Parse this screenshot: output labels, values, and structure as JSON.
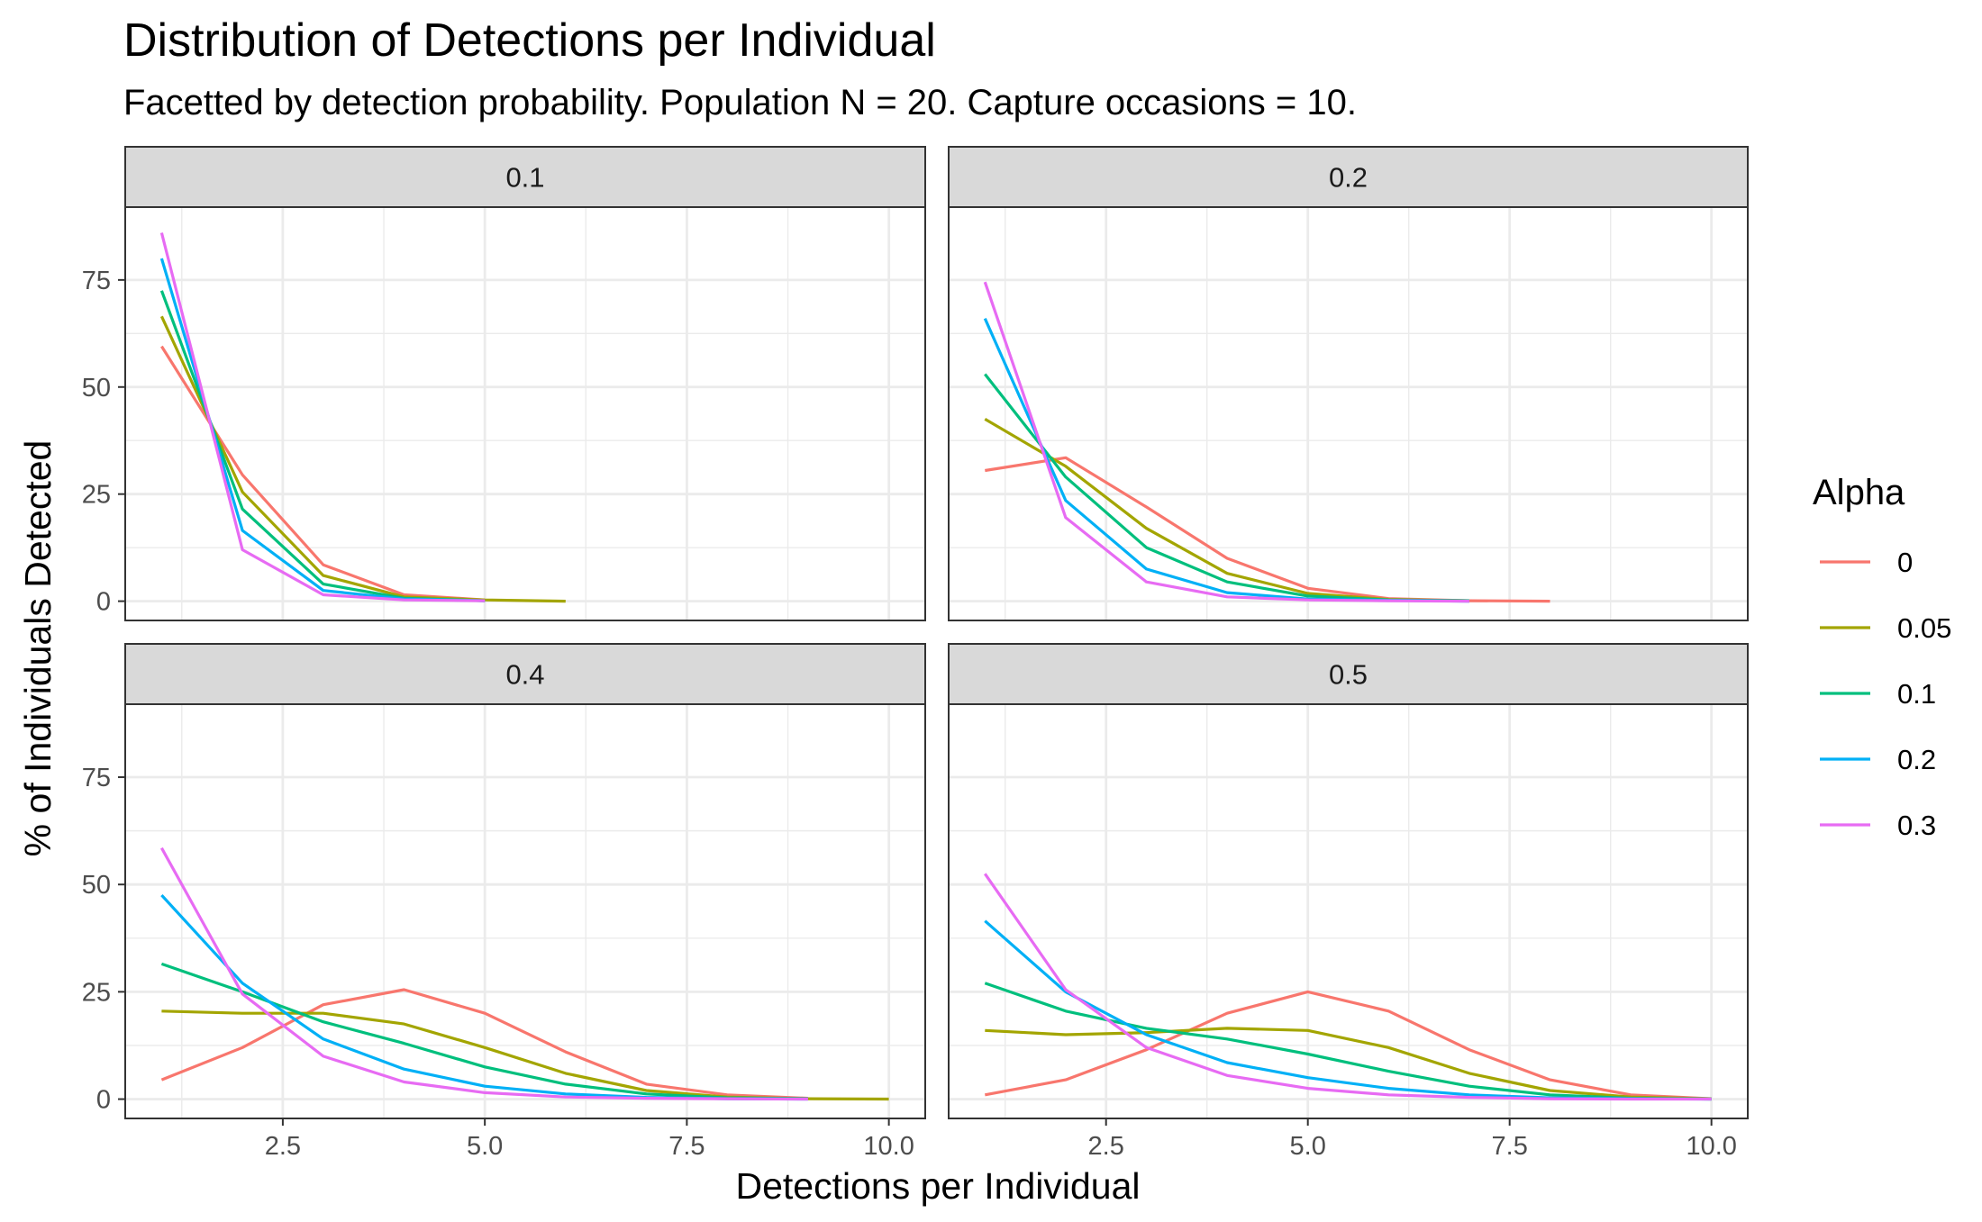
{
  "chart_data": {
    "type": "line",
    "title": "Distribution of Detections per Individual",
    "subtitle": "Facetted by detection probability. Population N = 20. Capture occasions = 10.",
    "xlabel": "Detections per Individual",
    "ylabel": "% of Individuals Detected",
    "xlim": [
      0.55,
      10.45
    ],
    "ylim": [
      -4.5,
      92
    ],
    "x_ticks": [
      2.5,
      5.0,
      7.5,
      10.0
    ],
    "x_tick_labels": [
      "2.5",
      "5.0",
      "7.5",
      "10.0"
    ],
    "y_ticks": [
      0,
      25,
      50,
      75
    ],
    "y_tick_labels": [
      "0",
      "25",
      "50",
      "75"
    ],
    "grid": true,
    "legend": {
      "title": "Alpha",
      "placement": "right",
      "entries": [
        {
          "label": "0",
          "color": "#F8766D"
        },
        {
          "label": "0.05",
          "color": "#A3A500"
        },
        {
          "label": "0.1",
          "color": "#00BF7D"
        },
        {
          "label": "0.2",
          "color": "#00B0F6"
        },
        {
          "label": "0.3",
          "color": "#E76BF3"
        }
      ]
    },
    "facets": [
      {
        "label": "0.1",
        "series": [
          {
            "name": "0",
            "x": [
              1,
              2,
              3,
              4,
              5
            ],
            "y": [
              59.5,
              29.5,
              8.5,
              1.5,
              0.3
            ]
          },
          {
            "name": "0.05",
            "x": [
              1,
              2,
              3,
              4,
              5,
              6
            ],
            "y": [
              66.5,
              25.5,
              6.0,
              1.0,
              0.3,
              0.0
            ]
          },
          {
            "name": "0.1",
            "x": [
              1,
              2,
              3,
              4,
              5
            ],
            "y": [
              72.5,
              21.5,
              4.0,
              0.7,
              0.1
            ]
          },
          {
            "name": "0.2",
            "x": [
              1,
              2,
              3,
              4,
              5
            ],
            "y": [
              80.0,
              16.5,
              2.5,
              0.5,
              0.1
            ]
          },
          {
            "name": "0.3",
            "x": [
              1,
              2,
              3,
              4,
              5
            ],
            "y": [
              86.0,
              12.0,
              1.5,
              0.3,
              0.1
            ]
          }
        ]
      },
      {
        "label": "0.2",
        "series": [
          {
            "name": "0",
            "x": [
              1,
              2,
              3,
              4,
              5,
              6,
              7,
              8
            ],
            "y": [
              30.5,
              33.5,
              22.0,
              10.0,
              3.0,
              0.6,
              0.1,
              0.0
            ]
          },
          {
            "name": "0.05",
            "x": [
              1,
              2,
              3,
              4,
              5,
              6,
              7
            ],
            "y": [
              42.5,
              31.5,
              17.0,
              6.5,
              1.8,
              0.4,
              0.1
            ]
          },
          {
            "name": "0.1",
            "x": [
              1,
              2,
              3,
              4,
              5,
              6,
              7
            ],
            "y": [
              53.0,
              29.0,
              12.5,
              4.5,
              1.2,
              0.3,
              0.1
            ]
          },
          {
            "name": "0.2",
            "x": [
              1,
              2,
              3,
              4,
              5,
              6,
              7
            ],
            "y": [
              66.0,
              23.5,
              7.5,
              2.0,
              0.5,
              0.2,
              0.0
            ]
          },
          {
            "name": "0.3",
            "x": [
              1,
              2,
              3,
              4,
              5,
              6,
              7
            ],
            "y": [
              74.5,
              19.5,
              4.5,
              1.0,
              0.3,
              0.1,
              0.0
            ]
          }
        ]
      },
      {
        "label": "0.4",
        "series": [
          {
            "name": "0",
            "x": [
              1,
              2,
              3,
              4,
              5,
              6,
              7,
              8,
              9
            ],
            "y": [
              4.5,
              12.0,
              22.0,
              25.5,
              20.0,
              11.0,
              3.5,
              1.0,
              0.2
            ]
          },
          {
            "name": "0.05",
            "x": [
              1,
              2,
              3,
              4,
              5,
              6,
              7,
              8,
              9,
              10
            ],
            "y": [
              20.5,
              20.0,
              20.0,
              17.5,
              12.0,
              6.0,
              2.0,
              0.5,
              0.1,
              0.0
            ]
          },
          {
            "name": "0.1",
            "x": [
              1,
              2,
              3,
              4,
              5,
              6,
              7,
              8,
              9
            ],
            "y": [
              31.5,
              25.0,
              18.0,
              13.0,
              7.5,
              3.5,
              1.2,
              0.3,
              0.1
            ]
          },
          {
            "name": "0.2",
            "x": [
              1,
              2,
              3,
              4,
              5,
              6,
              7,
              8,
              9
            ],
            "y": [
              47.5,
              27.0,
              14.0,
              7.0,
              3.0,
              1.2,
              0.4,
              0.1,
              0.0
            ]
          },
          {
            "name": "0.3",
            "x": [
              1,
              2,
              3,
              4,
              5,
              6,
              7,
              8,
              9
            ],
            "y": [
              58.5,
              24.5,
              10.0,
              4.0,
              1.5,
              0.5,
              0.2,
              0.1,
              0.0
            ]
          }
        ]
      },
      {
        "label": "0.5",
        "series": [
          {
            "name": "0",
            "x": [
              1,
              2,
              3,
              4,
              5,
              6,
              7,
              8,
              9,
              10
            ],
            "y": [
              1.0,
              4.5,
              11.5,
              20.0,
              25.0,
              20.5,
              11.5,
              4.5,
              1.0,
              0.1
            ]
          },
          {
            "name": "0.05",
            "x": [
              1,
              2,
              3,
              4,
              5,
              6,
              7,
              8,
              9,
              10
            ],
            "y": [
              16.0,
              15.0,
              15.5,
              16.5,
              16.0,
              12.0,
              6.0,
              2.0,
              0.5,
              0.1
            ]
          },
          {
            "name": "0.1",
            "x": [
              1,
              2,
              3,
              4,
              5,
              6,
              7,
              8,
              9,
              10
            ],
            "y": [
              27.0,
              20.5,
              16.5,
              14.0,
              10.5,
              6.5,
              3.0,
              1.0,
              0.2,
              0.0
            ]
          },
          {
            "name": "0.2",
            "x": [
              1,
              2,
              3,
              4,
              5,
              6,
              7,
              8,
              9,
              10
            ],
            "y": [
              41.5,
              25.0,
              15.0,
              8.5,
              5.0,
              2.5,
              1.0,
              0.3,
              0.1,
              0.0
            ]
          },
          {
            "name": "0.3",
            "x": [
              1,
              2,
              3,
              4,
              5,
              6,
              7,
              8,
              9,
              10
            ],
            "y": [
              52.5,
              25.5,
              12.0,
              5.5,
              2.5,
              1.0,
              0.4,
              0.1,
              0.0,
              0.0
            ]
          }
        ]
      }
    ]
  }
}
